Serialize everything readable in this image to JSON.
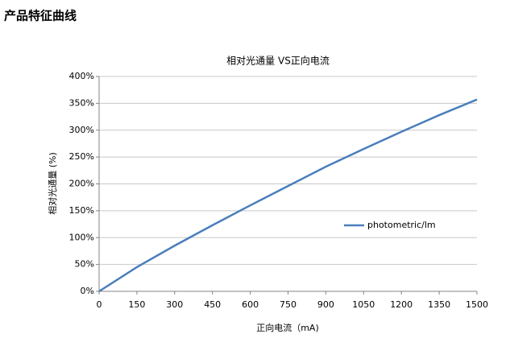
{
  "header": {
    "title": "产品特征曲线"
  },
  "chart_data": {
    "type": "line",
    "title": "相对光通量 VS正向电流",
    "x_label": "正向电流（mA)",
    "y_label": "相对光通量 (%)",
    "x": [
      0,
      150,
      300,
      450,
      600,
      750,
      900,
      1050,
      1200,
      1350,
      1500
    ],
    "series": [
      {
        "name": "photometric/lm",
        "color": "#4a7ebb",
        "values": [
          0,
          45,
          85,
          123,
          160,
          196,
          232,
          265,
          297,
          328,
          357
        ]
      }
    ],
    "xlim": [
      0,
      1500
    ],
    "xticks": [
      0,
      150,
      300,
      450,
      600,
      750,
      900,
      1050,
      1200,
      1350,
      1500
    ],
    "ylim": [
      0,
      400
    ],
    "yticks": [
      {
        "value": 0,
        "label": "0%"
      },
      {
        "value": 50,
        "label": "50%"
      },
      {
        "value": 100,
        "label": "100%"
      },
      {
        "value": 150,
        "label": "150%"
      },
      {
        "value": 200,
        "label": "200%"
      },
      {
        "value": 250,
        "label": "250%"
      },
      {
        "value": 300,
        "label": "300%"
      },
      {
        "value": 350,
        "label": "350%"
      },
      {
        "value": 400,
        "label": "400%"
      }
    ],
    "grid": true
  }
}
